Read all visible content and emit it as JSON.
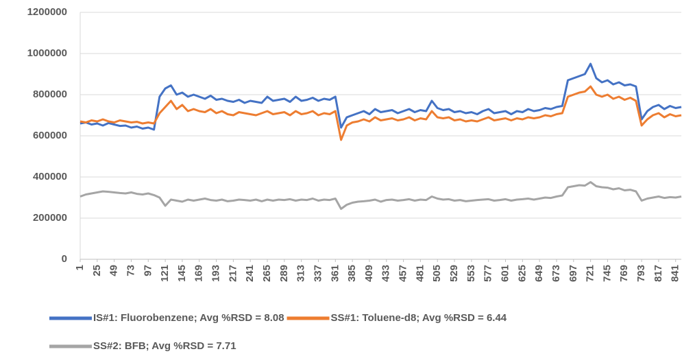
{
  "chart_data": {
    "type": "line",
    "x": [
      1,
      9,
      17,
      25,
      33,
      41,
      49,
      57,
      65,
      73,
      81,
      89,
      97,
      105,
      113,
      121,
      129,
      137,
      145,
      153,
      161,
      169,
      177,
      185,
      193,
      201,
      209,
      217,
      225,
      233,
      241,
      249,
      257,
      265,
      273,
      281,
      289,
      297,
      305,
      313,
      321,
      329,
      337,
      345,
      353,
      361,
      369,
      377,
      385,
      393,
      401,
      409,
      417,
      425,
      433,
      441,
      449,
      457,
      465,
      473,
      481,
      489,
      497,
      505,
      513,
      521,
      529,
      537,
      545,
      553,
      561,
      569,
      577,
      585,
      593,
      601,
      609,
      617,
      625,
      633,
      641,
      649,
      657,
      665,
      673,
      681,
      689,
      697,
      705,
      713,
      721,
      729,
      737,
      745,
      753,
      761,
      769,
      777,
      785,
      793,
      801,
      809,
      817,
      825,
      833,
      841,
      849
    ],
    "series": [
      {
        "name": "IS#1: Fluorobenzene; Avg %RSD = 8.08",
        "color": "#4472c4",
        "values": [
          660000,
          665000,
          655000,
          660000,
          650000,
          662000,
          655000,
          648000,
          650000,
          640000,
          645000,
          635000,
          640000,
          630000,
          790000,
          830000,
          845000,
          800000,
          810000,
          790000,
          800000,
          790000,
          780000,
          795000,
          775000,
          780000,
          770000,
          765000,
          775000,
          760000,
          770000,
          765000,
          760000,
          790000,
          770000,
          775000,
          780000,
          765000,
          790000,
          770000,
          775000,
          785000,
          770000,
          780000,
          775000,
          790000,
          640000,
          690000,
          700000,
          710000,
          720000,
          705000,
          730000,
          715000,
          720000,
          725000,
          710000,
          720000,
          730000,
          715000,
          725000,
          720000,
          770000,
          735000,
          725000,
          730000,
          715000,
          720000,
          710000,
          715000,
          705000,
          720000,
          730000,
          710000,
          715000,
          720000,
          705000,
          720000,
          715000,
          730000,
          720000,
          725000,
          735000,
          730000,
          740000,
          745000,
          870000,
          880000,
          890000,
          900000,
          950000,
          880000,
          860000,
          870000,
          850000,
          860000,
          845000,
          850000,
          840000,
          680000,
          720000,
          740000,
          750000,
          730000,
          745000,
          735000,
          740000
        ]
      },
      {
        "name": "SS#1: Toluene-d8; Avg %RSD = 6.44",
        "color": "#ed7d31",
        "values": [
          670000,
          665000,
          675000,
          670000,
          680000,
          670000,
          665000,
          675000,
          670000,
          665000,
          668000,
          660000,
          665000,
          660000,
          710000,
          740000,
          770000,
          730000,
          750000,
          720000,
          730000,
          720000,
          715000,
          730000,
          710000,
          720000,
          705000,
          700000,
          715000,
          710000,
          705000,
          700000,
          710000,
          720000,
          705000,
          710000,
          715000,
          700000,
          720000,
          705000,
          710000,
          720000,
          700000,
          710000,
          705000,
          720000,
          580000,
          650000,
          665000,
          670000,
          680000,
          670000,
          690000,
          675000,
          680000,
          685000,
          675000,
          680000,
          690000,
          675000,
          685000,
          680000,
          720000,
          690000,
          685000,
          690000,
          675000,
          680000,
          670000,
          675000,
          670000,
          680000,
          690000,
          675000,
          680000,
          685000,
          675000,
          685000,
          680000,
          690000,
          685000,
          690000,
          700000,
          695000,
          705000,
          710000,
          790000,
          800000,
          810000,
          815000,
          840000,
          800000,
          790000,
          800000,
          780000,
          790000,
          775000,
          785000,
          770000,
          650000,
          680000,
          700000,
          710000,
          690000,
          705000,
          695000,
          700000
        ]
      },
      {
        "name": "SS#2: BFB; Avg %RSD = 7.71",
        "color": "#a5a5a5",
        "values": [
          305000,
          315000,
          320000,
          325000,
          330000,
          328000,
          325000,
          322000,
          320000,
          325000,
          318000,
          315000,
          320000,
          312000,
          300000,
          260000,
          290000,
          285000,
          280000,
          290000,
          285000,
          290000,
          295000,
          288000,
          285000,
          290000,
          282000,
          285000,
          290000,
          288000,
          285000,
          290000,
          282000,
          290000,
          285000,
          290000,
          288000,
          292000,
          285000,
          290000,
          288000,
          295000,
          285000,
          290000,
          288000,
          295000,
          245000,
          265000,
          275000,
          280000,
          282000,
          285000,
          290000,
          280000,
          288000,
          290000,
          285000,
          288000,
          292000,
          285000,
          290000,
          288000,
          305000,
          295000,
          290000,
          292000,
          285000,
          288000,
          282000,
          285000,
          288000,
          290000,
          292000,
          285000,
          288000,
          292000,
          285000,
          290000,
          292000,
          295000,
          290000,
          295000,
          300000,
          298000,
          305000,
          310000,
          350000,
          355000,
          360000,
          358000,
          375000,
          355000,
          350000,
          348000,
          340000,
          345000,
          335000,
          338000,
          330000,
          285000,
          295000,
          300000,
          305000,
          298000,
          302000,
          300000,
          305000
        ]
      }
    ],
    "xlim": [
      1,
      849
    ],
    "xticks": [
      1,
      25,
      49,
      73,
      97,
      121,
      145,
      169,
      193,
      217,
      241,
      265,
      289,
      313,
      337,
      361,
      385,
      409,
      433,
      457,
      481,
      505,
      529,
      553,
      577,
      601,
      625,
      649,
      673,
      697,
      721,
      745,
      769,
      793,
      817,
      841
    ],
    "ylim": [
      0,
      1200000
    ],
    "yticks": [
      0,
      200000,
      400000,
      600000,
      800000,
      1000000,
      1200000
    ],
    "grid": true
  }
}
